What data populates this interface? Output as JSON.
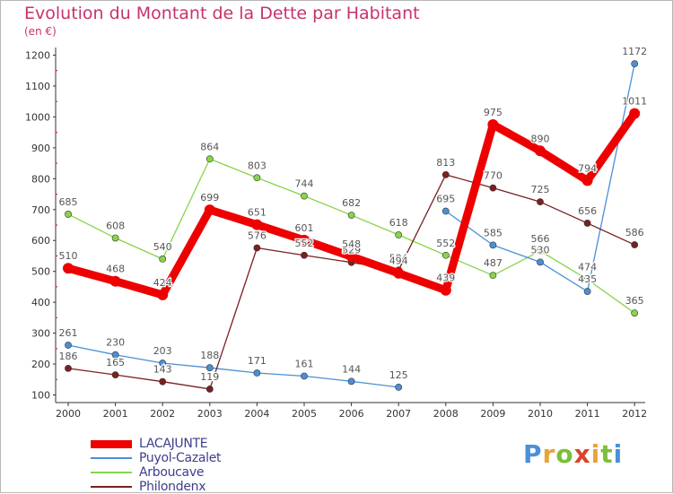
{
  "title": "Evolution du Montant de la Dette par Habitant",
  "subtitle": "(en €)",
  "brand": {
    "text": "Proxiti",
    "letter_colors": [
      "#4a90d9",
      "#e8a33a",
      "#7cbf3a",
      "#d9432e",
      "#e8a33a",
      "#7cbf3a",
      "#4a90d9"
    ]
  },
  "chart_data": {
    "type": "line",
    "x": [
      "2000",
      "2001",
      "2002",
      "2003",
      "2004",
      "2005",
      "2006",
      "2007",
      "2008",
      "2009",
      "2010",
      "2011",
      "2012"
    ],
    "ylim": [
      100,
      1200
    ],
    "yticks": [
      100,
      200,
      300,
      400,
      500,
      600,
      700,
      800,
      900,
      1000,
      1100,
      1200
    ],
    "grid": false,
    "legend_position": "bottom-left",
    "series": [
      {
        "name": "LACAJUNTE",
        "color": "#ee0000",
        "thick": true,
        "values": [
          510,
          468,
          424,
          699,
          651,
          601,
          548,
          494,
          439,
          975,
          890,
          794,
          1011
        ]
      },
      {
        "name": "Puyol-Cazalet",
        "color": "#4b8fd6",
        "thick": false,
        "segments": [
          [
            0,
            7
          ],
          [
            8,
            12
          ]
        ],
        "values": [
          261,
          230,
          203,
          188,
          171,
          161,
          144,
          125,
          695,
          585,
          530,
          435,
          1172
        ]
      },
      {
        "name": "Arboucave",
        "color": "#88d44a",
        "thick": false,
        "values": [
          685,
          608,
          540,
          864,
          803,
          744,
          682,
          618,
          552,
          487,
          566,
          474,
          365
        ]
      },
      {
        "name": "Philondenx",
        "color": "#7a2020",
        "thick": false,
        "segments": [
          [
            0,
            3
          ],
          [
            3,
            12
          ]
        ],
        "values": [
          186,
          165,
          143,
          119,
          576,
          552,
          529,
          504,
          813,
          770,
          725,
          656,
          586
        ]
      }
    ]
  }
}
